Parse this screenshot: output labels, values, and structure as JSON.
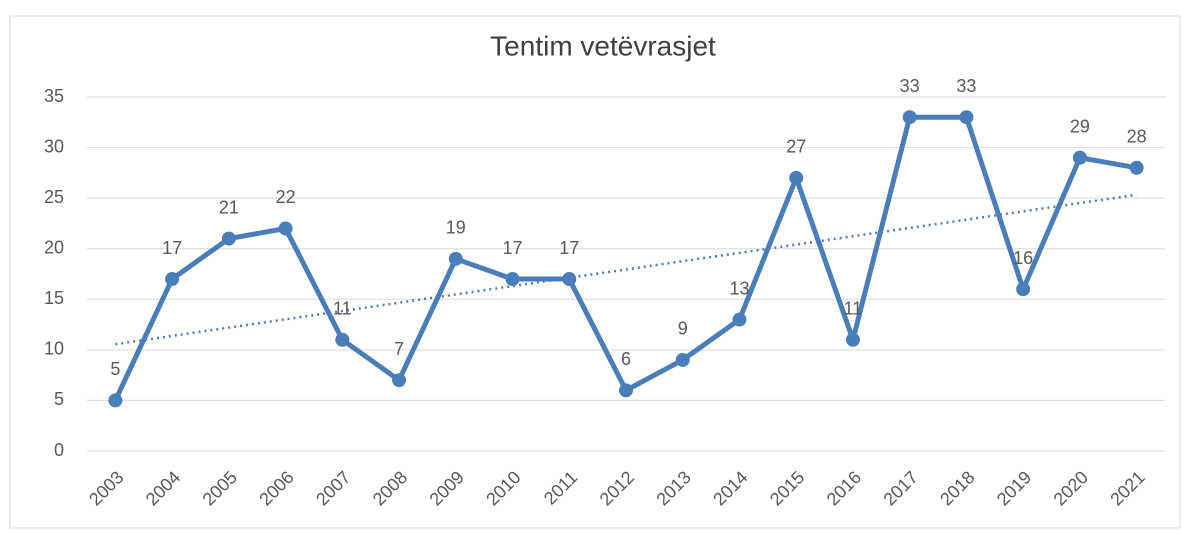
{
  "chart_data": {
    "type": "line",
    "title": "Tentim vetëvrasjet",
    "categories": [
      "2003",
      "2004",
      "2005",
      "2006",
      "2007",
      "2008",
      "2009",
      "2010",
      "2011",
      "2012",
      "2013",
      "2014",
      "2015",
      "2016",
      "2017",
      "2018",
      "2019",
      "2020",
      "2021"
    ],
    "values": [
      5,
      17,
      21,
      22,
      11,
      7,
      19,
      17,
      17,
      6,
      9,
      13,
      27,
      11,
      33,
      33,
      16,
      29,
      28
    ],
    "color": "#4a7ebb",
    "ylim": [
      0,
      35
    ],
    "yticks": [
      0,
      5,
      10,
      15,
      20,
      25,
      30,
      35
    ],
    "grid": true,
    "data_labels": true,
    "trendline": "linear"
  }
}
